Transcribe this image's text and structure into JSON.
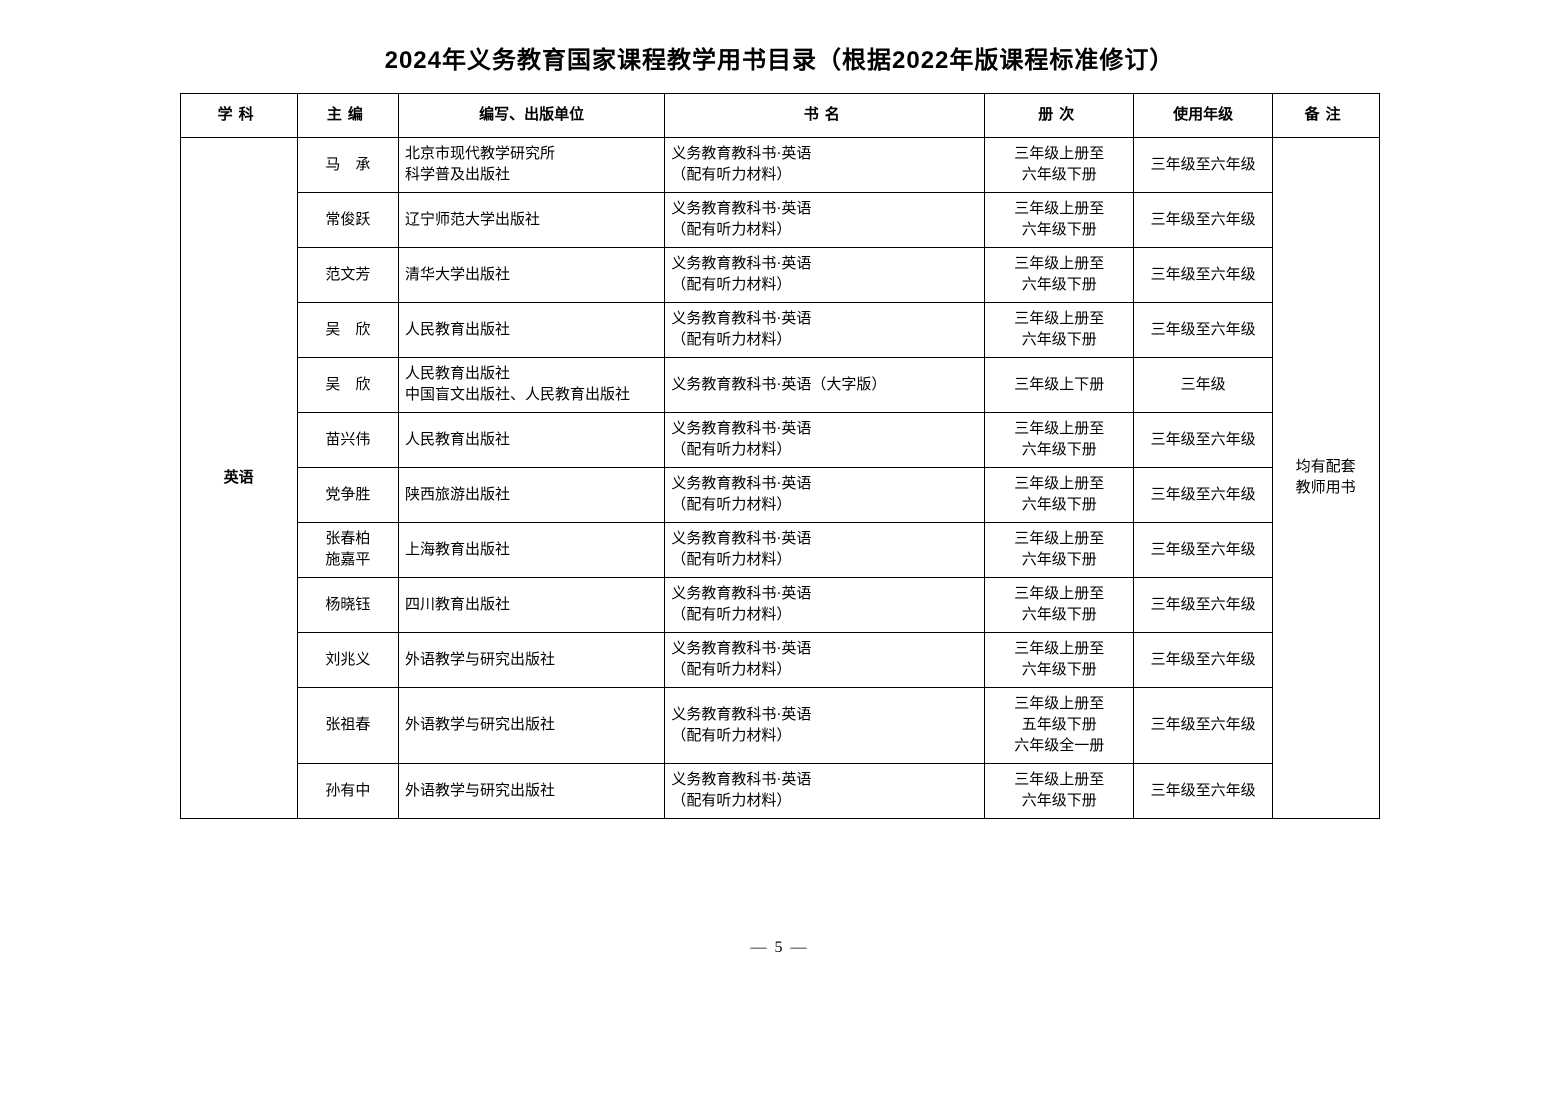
{
  "title": "2024年义务教育国家课程教学用书目录（根据2022年版课程标准修订）",
  "page_number": "— 5 —",
  "columns": {
    "subject": "学科",
    "editor": "主编",
    "publisher": "编写、出版单位",
    "book": "书名",
    "volume": "册次",
    "grade": "使用年级",
    "note": "备注"
  },
  "subject": "英语",
  "note": "均有配套\n教师用书",
  "rows": [
    {
      "editor": "马　承",
      "publisher": "北京市现代教学研究所\n科学普及出版社",
      "book": "义务教育教科书·英语\n（配有听力材料）",
      "volume": "三年级上册至\n六年级下册",
      "grade": "三年级至六年级"
    },
    {
      "editor": "常俊跃",
      "publisher": "辽宁师范大学出版社",
      "book": "义务教育教科书·英语\n（配有听力材料）",
      "volume": "三年级上册至\n六年级下册",
      "grade": "三年级至六年级"
    },
    {
      "editor": "范文芳",
      "publisher": "清华大学出版社",
      "book": "义务教育教科书·英语\n（配有听力材料）",
      "volume": "三年级上册至\n六年级下册",
      "grade": "三年级至六年级"
    },
    {
      "editor": "吴　欣",
      "publisher": "人民教育出版社",
      "book": "义务教育教科书·英语\n（配有听力材料）",
      "volume": "三年级上册至\n六年级下册",
      "grade": "三年级至六年级"
    },
    {
      "editor": "吴　欣",
      "publisher": "人民教育出版社\n中国盲文出版社、人民教育出版社",
      "book": "义务教育教科书·英语（大字版）",
      "volume": "三年级上下册",
      "grade": "三年级"
    },
    {
      "editor": "苗兴伟",
      "publisher": "人民教育出版社",
      "book": "义务教育教科书·英语\n（配有听力材料）",
      "volume": "三年级上册至\n六年级下册",
      "grade": "三年级至六年级"
    },
    {
      "editor": "党争胜",
      "publisher": "陕西旅游出版社",
      "book": "义务教育教科书·英语\n（配有听力材料）",
      "volume": "三年级上册至\n六年级下册",
      "grade": "三年级至六年级"
    },
    {
      "editor": "张春柏\n施嘉平",
      "publisher": "上海教育出版社",
      "book": "义务教育教科书·英语\n（配有听力材料）",
      "volume": "三年级上册至\n六年级下册",
      "grade": "三年级至六年级"
    },
    {
      "editor": "杨晓钰",
      "publisher": "四川教育出版社",
      "book": "义务教育教科书·英语\n（配有听力材料）",
      "volume": "三年级上册至\n六年级下册",
      "grade": "三年级至六年级"
    },
    {
      "editor": "刘兆义",
      "publisher": "外语教学与研究出版社",
      "book": "义务教育教科书·英语\n（配有听力材料）",
      "volume": "三年级上册至\n六年级下册",
      "grade": "三年级至六年级"
    },
    {
      "editor": "张祖春",
      "publisher": "外语教学与研究出版社",
      "book": "义务教育教科书·英语\n（配有听力材料）",
      "volume": "三年级上册至\n五年级下册\n六年级全一册",
      "grade": "三年级至六年级"
    },
    {
      "editor": "孙有中",
      "publisher": "外语教学与研究出版社",
      "book": "义务教育教科书·英语\n（配有听力材料）",
      "volume": "三年级上册至\n六年级下册",
      "grade": "三年级至六年级"
    }
  ]
}
